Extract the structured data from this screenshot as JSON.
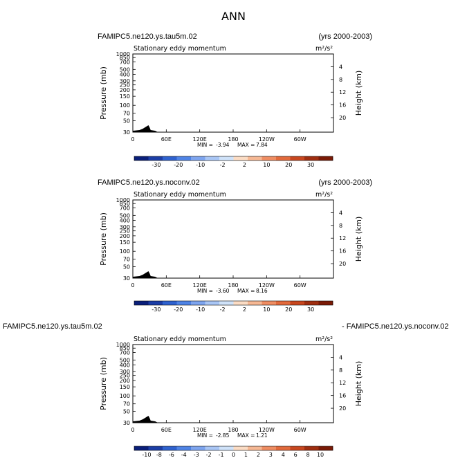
{
  "figure": {
    "title": "ANN"
  },
  "chart_data": [
    {
      "type": "heatmap",
      "case_left": "FAMIPC5.ne120.ys.tau5m.02",
      "case_right": "(yrs 2000-2003)",
      "subtitle": "Stationary eddy momentum",
      "units": "m²/s²",
      "ylabel": "Pressure (mb)",
      "ylabel_right": "Height (km)",
      "xticks": [
        "0",
        "60E",
        "120E",
        "180",
        "120W",
        "60W"
      ],
      "pressure_ticks": [
        "30",
        "50",
        "70",
        "100",
        "150",
        "200",
        "250",
        "300",
        "400",
        "500",
        "700",
        "850",
        "1000"
      ],
      "height_ticks": [
        "20",
        "16",
        "12",
        "8",
        "4"
      ],
      "stats": {
        "min_label": "MIN =",
        "min": "-3.94",
        "max_label": "MAX =",
        "max": "7.84"
      },
      "colorbar_levels": [
        "-30",
        "-20",
        "-10",
        "-2",
        "2",
        "10",
        "20",
        "30"
      ],
      "colorbar_colors": [
        "#0a1f7a",
        "#1c3ea6",
        "#2f62cf",
        "#4f84e6",
        "#7ea5ef",
        "#a9c6f5",
        "#cfe2f9",
        "#fbdcc4",
        "#f6b894",
        "#ef8d62",
        "#e26a3c",
        "#c8471f",
        "#9f2e10",
        "#7a1a06"
      ],
      "ylim_mb": [
        1000,
        30
      ],
      "xlim_deg": [
        0,
        360
      ],
      "regions": [
        {
          "sign": "positive",
          "lon": [
            0,
            360
          ],
          "p": [
            1000,
            30
          ]
        },
        {
          "sign": "negative",
          "lon": [
            5,
            100
          ],
          "p": [
            700,
            80
          ]
        },
        {
          "sign": "negative",
          "lon": [
            110,
            165
          ],
          "p": [
            300,
            40
          ]
        },
        {
          "sign": "negative",
          "lon": [
            200,
            255
          ],
          "p": [
            450,
            35
          ]
        },
        {
          "sign": "negative",
          "lon": [
            270,
            330
          ],
          "p": [
            250,
            60
          ]
        },
        {
          "sign": "negative",
          "lon": [
            0,
            250
          ],
          "p": [
            1000,
            650
          ]
        },
        {
          "sign": "negative",
          "lon": [
            0,
            360
          ],
          "p": [
            45,
            30
          ]
        }
      ]
    },
    {
      "type": "heatmap",
      "case_left": "FAMIPC5.ne120.ys.noconv.02",
      "case_right": "(yrs 2000-2003)",
      "subtitle": "Stationary eddy momentum",
      "units": "m²/s²",
      "ylabel": "Pressure (mb)",
      "ylabel_right": "Height (km)",
      "xticks": [
        "0",
        "60E",
        "120E",
        "180",
        "120W",
        "60W"
      ],
      "pressure_ticks": [
        "30",
        "50",
        "70",
        "100",
        "150",
        "200",
        "250",
        "300",
        "400",
        "500",
        "700",
        "850",
        "1000"
      ],
      "height_ticks": [
        "20",
        "16",
        "12",
        "8",
        "4"
      ],
      "stats": {
        "min_label": "MIN =",
        "min": "-3.60",
        "max_label": "MAX =",
        "max": "8.16"
      },
      "colorbar_levels": [
        "-30",
        "-20",
        "-10",
        "-2",
        "2",
        "10",
        "20",
        "30"
      ],
      "colorbar_colors": [
        "#0a1f7a",
        "#1c3ea6",
        "#2f62cf",
        "#4f84e6",
        "#7ea5ef",
        "#a9c6f5",
        "#cfe2f9",
        "#fbdcc4",
        "#f6b894",
        "#ef8d62",
        "#e26a3c",
        "#c8471f",
        "#9f2e10",
        "#7a1a06"
      ],
      "ylim_mb": [
        1000,
        30
      ],
      "xlim_deg": [
        0,
        360
      ],
      "regions": [
        {
          "sign": "negative",
          "lon": [
            0,
            360
          ],
          "p": [
            1000,
            30
          ]
        },
        {
          "sign": "positive",
          "lon": [
            5,
            130
          ],
          "p": [
            70,
            40
          ]
        },
        {
          "sign": "positive",
          "lon": [
            130,
            190
          ],
          "p": [
            300,
            50
          ]
        },
        {
          "sign": "positive",
          "lon": [
            200,
            260
          ],
          "p": [
            500,
            200
          ]
        },
        {
          "sign": "positive",
          "lon": [
            240,
            300
          ],
          "p": [
            700,
            500
          ]
        },
        {
          "sign": "positive",
          "lon": [
            270,
            340
          ],
          "p": [
            150,
            60
          ]
        }
      ]
    },
    {
      "type": "heatmap",
      "case_left": "FAMIPC5.ne120.ys.tau5m.02",
      "case_right": "- FAMIPC5.ne120.ys.noconv.02",
      "subtitle": "Stationary eddy momentum",
      "units": "m²/s²",
      "ylabel": "Pressure (mb)",
      "ylabel_right": "Height (km)",
      "xticks": [
        "0",
        "60E",
        "120E",
        "180",
        "120W",
        "60W"
      ],
      "pressure_ticks": [
        "30",
        "50",
        "70",
        "100",
        "150",
        "200",
        "250",
        "300",
        "400",
        "500",
        "700",
        "850",
        "1000"
      ],
      "height_ticks": [
        "20",
        "16",
        "12",
        "8",
        "4"
      ],
      "stats": {
        "min_label": "MIN =",
        "min": "-2.85",
        "max_label": "MAX =",
        "max": "1.21"
      },
      "colorbar_levels": [
        "-10",
        "-8",
        "-6",
        "-4",
        "-3",
        "-2",
        "-1",
        "0",
        "1",
        "2",
        "3",
        "4",
        "6",
        "8",
        "10"
      ],
      "colorbar_colors": [
        "#0a1f7a",
        "#1c3ea6",
        "#2f62cf",
        "#4f84e6",
        "#7ea5ef",
        "#a9c6f5",
        "#cfe2f9",
        "#fbdcc4",
        "#f6b894",
        "#ef8d62",
        "#e26a3c",
        "#c8471f",
        "#9f2e10",
        "#7a1a06"
      ],
      "ylim_mb": [
        1000,
        30
      ],
      "xlim_deg": [
        0,
        360
      ],
      "regions": [
        {
          "sign": "negative",
          "lon": [
            0,
            360
          ],
          "p": [
            1000,
            30
          ]
        },
        {
          "sign": "positive",
          "lon": [
            70,
            120
          ],
          "p": [
            300,
            150
          ]
        },
        {
          "sign": "positive",
          "lon": [
            120,
            220
          ],
          "p": [
            500,
            60
          ]
        },
        {
          "sign": "positive",
          "lon": [
            240,
            280
          ],
          "p": [
            400,
            40
          ]
        },
        {
          "sign": "positive",
          "lon": [
            280,
            350
          ],
          "p": [
            300,
            80
          ]
        },
        {
          "sign": "positive",
          "lon": [
            0,
            100
          ],
          "p": [
            700,
            500
          ]
        },
        {
          "sign": "negative_strong",
          "lon": [
            252,
            268
          ],
          "p": [
            250,
            170
          ]
        },
        {
          "sign": "negative_core",
          "lon": [
            255,
            265
          ],
          "p": [
            230,
            190
          ]
        },
        {
          "sign": "negative_strong",
          "lon": [
            40,
            48
          ],
          "p": [
            760,
            640
          ]
        }
      ]
    }
  ]
}
